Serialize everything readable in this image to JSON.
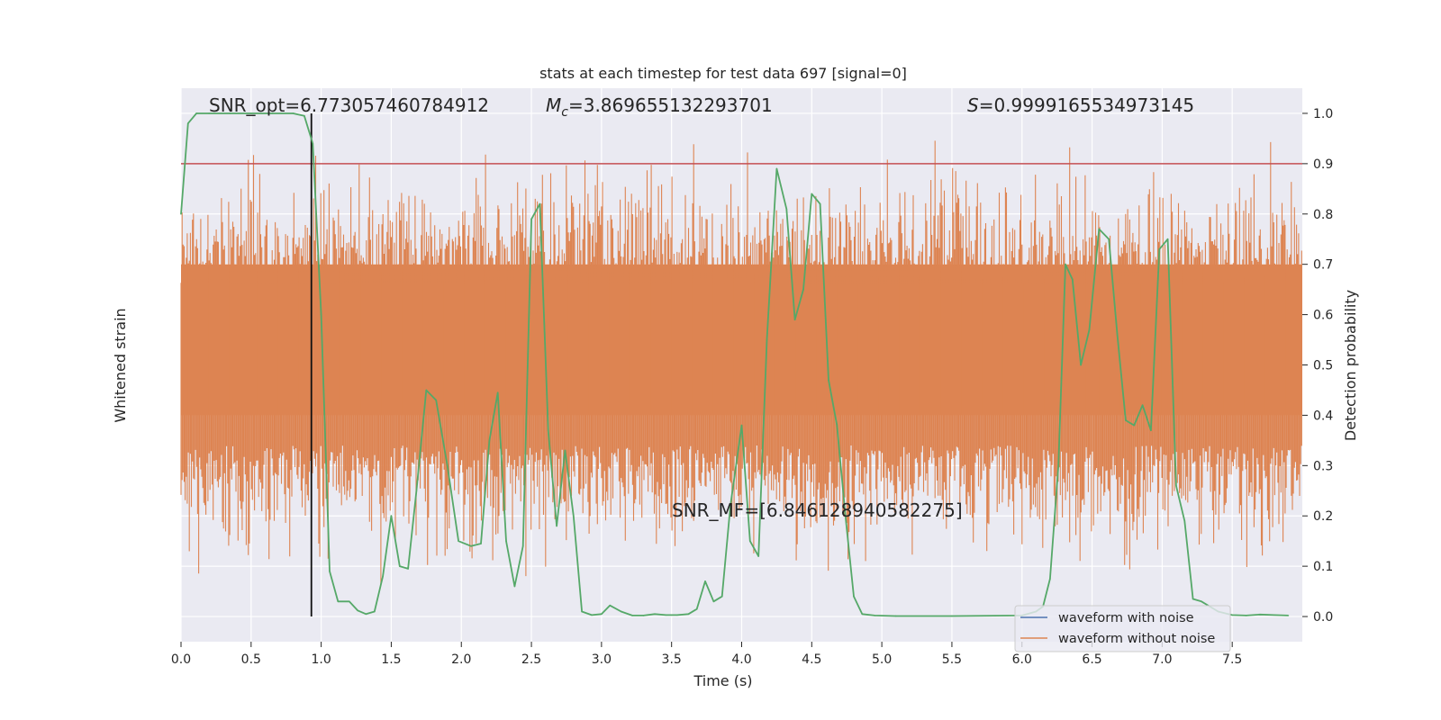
{
  "chart_data": {
    "type": "line",
    "title": "stats at each timestep for test data 697 [signal=0]",
    "xlabel": "Time (s)",
    "ylabel_left": "Whitened strain",
    "ylabel_right": "Detection probability",
    "xlim": [
      0,
      8.0
    ],
    "ylim_right": [
      -0.05,
      1.05
    ],
    "x_ticks": [
      0.0,
      0.5,
      1.0,
      1.5,
      2.0,
      2.5,
      3.0,
      3.5,
      4.0,
      4.5,
      5.0,
      5.5,
      6.0,
      6.5,
      7.0,
      7.5
    ],
    "x_tick_labels": [
      "0.0",
      "0.5",
      "1.0",
      "1.5",
      "2.0",
      "2.5",
      "3.0",
      "3.5",
      "4.0",
      "4.5",
      "5.0",
      "5.5",
      "6.0",
      "6.5",
      "7.0",
      "7.5"
    ],
    "y_ticks_right": [
      0.0,
      0.1,
      0.2,
      0.3,
      0.4,
      0.5,
      0.6,
      0.7,
      0.8,
      0.9,
      1.0
    ],
    "y_tick_labels_right": [
      "0.0",
      "0.1",
      "0.2",
      "0.3",
      "0.4",
      "0.5",
      "0.6",
      "0.7",
      "0.8",
      "0.9",
      "1.0"
    ],
    "grid": true,
    "legend_position": "lower right",
    "series": [
      {
        "name": "waveform with noise",
        "color": "#4c72b0",
        "values": []
      },
      {
        "name": "waveform without noise",
        "color": "#dd8452",
        "note_values": "dense noise trace centered near 0.5 (right axis scale)"
      },
      {
        "color": "#55a868",
        "x": [
          0.0,
          0.05,
          0.11,
          0.2,
          0.35,
          0.5,
          0.65,
          0.8,
          0.88,
          0.94,
          1.0,
          1.06,
          1.12,
          1.2,
          1.26,
          1.32,
          1.38,
          1.44,
          1.5,
          1.56,
          1.62,
          1.68,
          1.75,
          1.82,
          1.9,
          1.98,
          2.07,
          2.14,
          2.2,
          2.26,
          2.32,
          2.38,
          2.44,
          2.5,
          2.56,
          2.62,
          2.68,
          2.74,
          2.8,
          2.86,
          2.93,
          3.0,
          3.06,
          3.14,
          3.22,
          3.3,
          3.38,
          3.46,
          3.54,
          3.62,
          3.68,
          3.74,
          3.8,
          3.86,
          3.92,
          4.0,
          4.06,
          4.12,
          4.18,
          4.25,
          4.32,
          4.38,
          4.44,
          4.5,
          4.56,
          4.62,
          4.68,
          4.74,
          4.8,
          4.86,
          4.95,
          5.1,
          5.5,
          6.0,
          6.1,
          6.15,
          6.2,
          6.26,
          6.31,
          6.36,
          6.42,
          6.48,
          6.55,
          6.62,
          6.68,
          6.74,
          6.8,
          6.86,
          6.92,
          6.98,
          7.04,
          7.1,
          7.16,
          7.22,
          7.28,
          7.34,
          7.4,
          7.5,
          7.6,
          7.7,
          7.8,
          7.9
        ],
        "values": [
          0.8,
          0.98,
          1.0,
          1.0,
          1.0,
          1.0,
          1.0,
          1.0,
          0.995,
          0.94,
          0.6,
          0.09,
          0.03,
          0.03,
          0.012,
          0.005,
          0.01,
          0.08,
          0.2,
          0.1,
          0.095,
          0.25,
          0.45,
          0.43,
          0.3,
          0.15,
          0.14,
          0.145,
          0.35,
          0.445,
          0.15,
          0.06,
          0.14,
          0.79,
          0.82,
          0.37,
          0.18,
          0.33,
          0.2,
          0.01,
          0.003,
          0.005,
          0.022,
          0.01,
          0.002,
          0.002,
          0.005,
          0.003,
          0.003,
          0.005,
          0.015,
          0.07,
          0.03,
          0.04,
          0.22,
          0.38,
          0.15,
          0.12,
          0.55,
          0.89,
          0.81,
          0.59,
          0.65,
          0.84,
          0.82,
          0.47,
          0.38,
          0.2,
          0.04,
          0.005,
          0.002,
          0.001,
          0.001,
          0.002,
          0.01,
          0.02,
          0.075,
          0.3,
          0.7,
          0.67,
          0.5,
          0.57,
          0.77,
          0.75,
          0.56,
          0.39,
          0.38,
          0.42,
          0.37,
          0.73,
          0.75,
          0.26,
          0.19,
          0.035,
          0.03,
          0.02,
          0.01,
          0.003,
          0.002,
          0.004,
          0.003,
          0.002
        ]
      }
    ],
    "hlines": [
      {
        "y": 0.9,
        "color": "#c44e52"
      }
    ],
    "vlines": [
      {
        "x": 0.93,
        "color": "#111111"
      }
    ],
    "annotations": [
      {
        "text": "SNR_opt=6.773057460784912"
      },
      {
        "text": "=3.869655132293701",
        "prefix": "M",
        "sub": "c"
      },
      {
        "text": "=0.9999165534973145",
        "prefix": "S"
      },
      {
        "text": "SNR_MF=[6.846128940582275]"
      }
    ]
  }
}
